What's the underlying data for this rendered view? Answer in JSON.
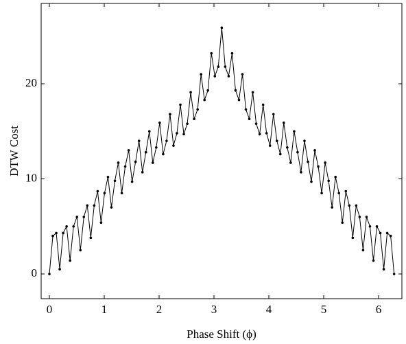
{
  "chart_data": {
    "type": "line",
    "xlabel": "Phase Shift (ϕ)",
    "ylabel": "DTW Cost",
    "x": [
      0,
      0.0628,
      0.1257,
      0.1885,
      0.2513,
      0.3142,
      0.377,
      0.4398,
      0.5027,
      0.5655,
      0.6283,
      0.6912,
      0.754,
      0.8168,
      0.8796,
      0.9425,
      1.0053,
      1.0681,
      1.131,
      1.1938,
      1.2566,
      1.3195,
      1.3823,
      1.4451,
      1.508,
      1.5708,
      1.6336,
      1.6965,
      1.7593,
      1.8221,
      1.885,
      1.9478,
      2.0106,
      2.0735,
      2.1363,
      2.1991,
      2.2619,
      2.3248,
      2.3876,
      2.4504,
      2.5133,
      2.5761,
      2.6389,
      2.7018,
      2.7646,
      2.8274,
      2.8903,
      2.9531,
      3.0159,
      3.0788,
      3.1416,
      3.2044,
      3.2673,
      3.3301,
      3.3929,
      3.4558,
      3.5186,
      3.5814,
      3.6442,
      3.7071,
      3.7699,
      3.8327,
      3.8956,
      3.9584,
      4.0212,
      4.0841,
      4.1469,
      4.2097,
      4.2726,
      4.3354,
      4.3982,
      4.4611,
      4.5239,
      4.5867,
      4.6496,
      4.7124,
      4.7752,
      4.8381,
      4.9009,
      4.9637,
      5.0265,
      5.0894,
      5.1522,
      5.215,
      5.2779,
      5.3407,
      5.4035,
      5.4664,
      5.5292,
      5.592,
      5.6549,
      5.7177,
      5.7805,
      5.8434,
      5.9062,
      5.969,
      6.0319,
      6.0947,
      6.1575,
      6.2204,
      6.2832
    ],
    "values": [
      0,
      4.0,
      4.3,
      0.5,
      4.3,
      5.0,
      1.4,
      5.0,
      6.0,
      2.5,
      6.0,
      7.2,
      3.8,
      7.2,
      8.7,
      5.4,
      8.5,
      10.2,
      7.0,
      9.8,
      11.7,
      8.5,
      11.3,
      13.0,
      9.7,
      11.8,
      14.0,
      10.7,
      12.8,
      15.0,
      11.7,
      13.3,
      15.9,
      12.6,
      14.0,
      16.8,
      13.5,
      14.8,
      17.8,
      14.7,
      15.8,
      19.1,
      16.3,
      17.3,
      21.0,
      18.3,
      19.3,
      23.2,
      20.8,
      21.8,
      25.9,
      21.8,
      20.8,
      23.2,
      19.3,
      18.3,
      21.0,
      17.3,
      16.3,
      19.1,
      15.8,
      14.7,
      17.8,
      14.8,
      13.5,
      16.8,
      14.0,
      12.6,
      15.9,
      13.3,
      11.7,
      15.0,
      12.8,
      10.7,
      14.0,
      11.8,
      9.7,
      13.0,
      11.3,
      8.5,
      11.7,
      9.8,
      7.0,
      10.2,
      8.5,
      5.4,
      8.7,
      7.2,
      3.8,
      7.2,
      6.0,
      2.5,
      6.0,
      5.0,
      1.4,
      5.0,
      4.3,
      0.5,
      4.3,
      4.0,
      0
    ],
    "color": "#000000",
    "xlim": [
      -0.15,
      6.425
    ],
    "ylim": [
      -2.6,
      28.45
    ],
    "xticks": [
      0,
      1,
      2,
      3,
      4,
      5,
      6
    ],
    "yticks": [
      0,
      10,
      20
    ],
    "grid": false
  }
}
